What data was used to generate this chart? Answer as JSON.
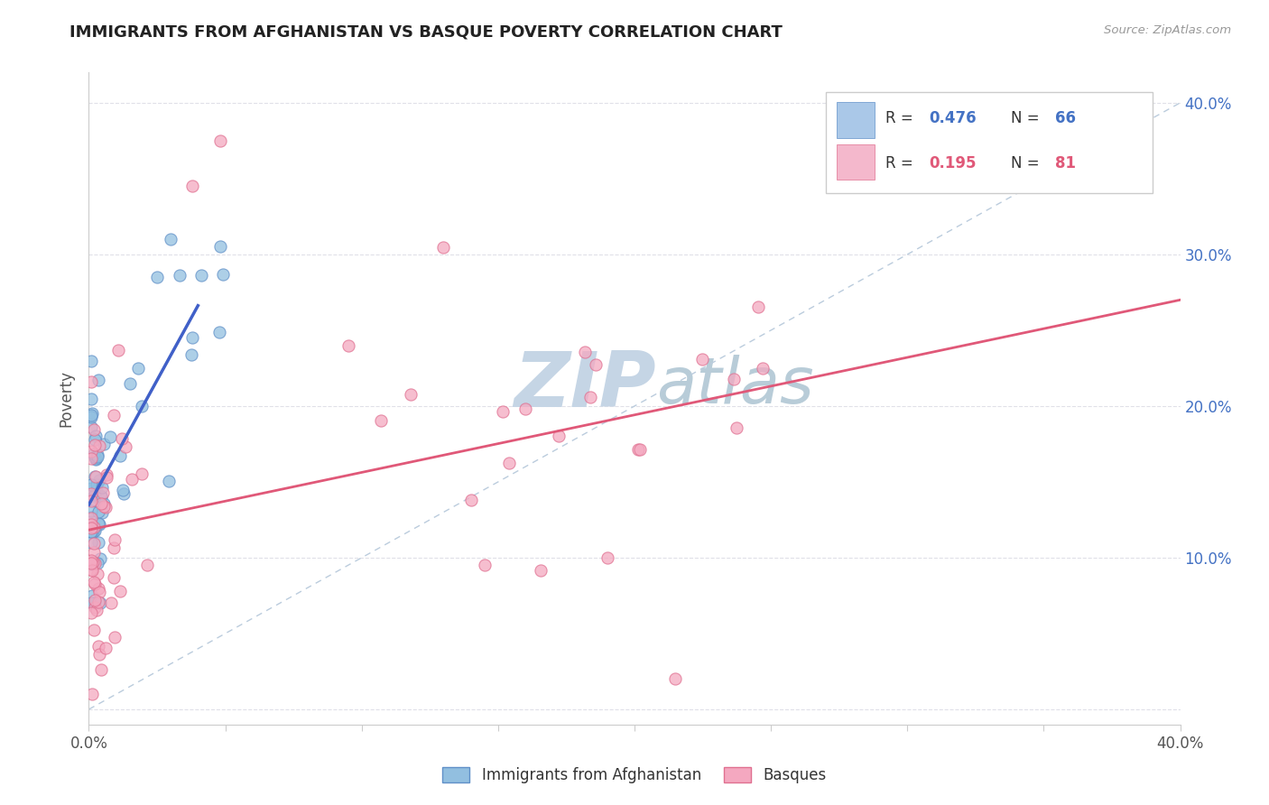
{
  "title": "IMMIGRANTS FROM AFGHANISTAN VS BASQUE POVERTY CORRELATION CHART",
  "source": "Source: ZipAtlas.com",
  "ylabel": "Poverty",
  "x_min": 0.0,
  "x_max": 0.4,
  "y_min": 0.0,
  "y_max": 0.42,
  "series1_label": "Immigrants from Afghanistan",
  "series2_label": "Basques",
  "series1_color": "#92bfe0",
  "series2_color": "#f4a8c0",
  "series1_edge": "#6090c8",
  "series2_edge": "#e07090",
  "trend1_color": "#4060c8",
  "trend2_color": "#e05878",
  "dash_color": "#bbccdd",
  "watermark_zip_color": "#c5d5e5",
  "watermark_atlas_color": "#b8ccd8",
  "background_color": "#ffffff",
  "grid_color": "#e0e0e8",
  "right_axis_color": "#4472c4",
  "legend_blue_fill": "#aac8e8",
  "legend_pink_fill": "#f4b8cc",
  "r1_val": "0.476",
  "n1_val": "66",
  "r2_val": "0.195",
  "n2_val": "81",
  "n1": 66,
  "n2": 81
}
